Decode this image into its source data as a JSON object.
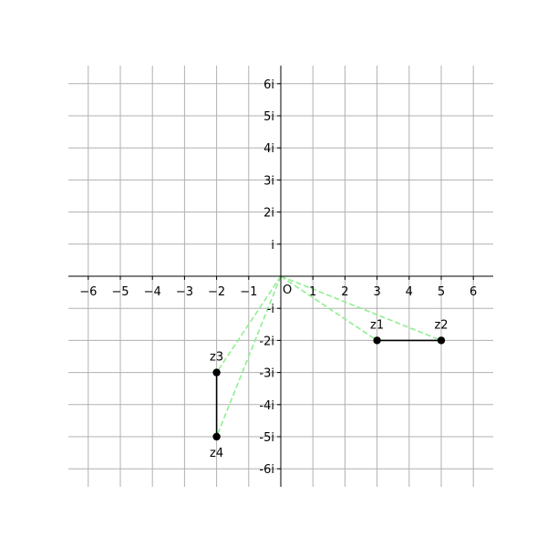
{
  "chart_data": {
    "type": "scatter",
    "title": "",
    "xlabel": "",
    "ylabel": "",
    "xlim": [
      -6.6,
      6.6
    ],
    "ylim": [
      -6.6,
      6.6
    ],
    "grid": true,
    "x_ticks": [
      {
        "value": -6,
        "label": "−6"
      },
      {
        "value": -5,
        "label": "−5"
      },
      {
        "value": -4,
        "label": "−4"
      },
      {
        "value": -3,
        "label": "−3"
      },
      {
        "value": -2,
        "label": "−2"
      },
      {
        "value": -1,
        "label": "−1"
      },
      {
        "value": 1,
        "label": "1"
      },
      {
        "value": 2,
        "label": "2"
      },
      {
        "value": 3,
        "label": "3"
      },
      {
        "value": 4,
        "label": "4"
      },
      {
        "value": 5,
        "label": "5"
      },
      {
        "value": 6,
        "label": "6"
      }
    ],
    "y_ticks": [
      {
        "value": 6,
        "label": "6i"
      },
      {
        "value": 5,
        "label": "5i"
      },
      {
        "value": 4,
        "label": "4i"
      },
      {
        "value": 3,
        "label": "3i"
      },
      {
        "value": 2,
        "label": "2i"
      },
      {
        "value": 1,
        "label": "i"
      },
      {
        "value": -1,
        "label": "-i"
      },
      {
        "value": -2,
        "label": "-2i"
      },
      {
        "value": -3,
        "label": "-3i"
      },
      {
        "value": -4,
        "label": "-4i"
      },
      {
        "value": -5,
        "label": "-5i"
      },
      {
        "value": -6,
        "label": "-6i"
      }
    ],
    "origin_label": "O",
    "points": [
      {
        "label": "z1",
        "x": 3,
        "y": -2,
        "label_pos": "above"
      },
      {
        "label": "z2",
        "x": 5,
        "y": -2,
        "label_pos": "above"
      },
      {
        "label": "z3",
        "x": -2,
        "y": -3,
        "label_pos": "above"
      },
      {
        "label": "z4",
        "x": -2,
        "y": -5,
        "label_pos": "below"
      }
    ],
    "segments": [
      {
        "from": "z1",
        "to": "z2"
      },
      {
        "from": "z3",
        "to": "z4"
      }
    ],
    "dashed_rays": [
      "z1",
      "z2",
      "z3",
      "z4"
    ],
    "colors": {
      "grid": "#b0b0b0",
      "axis": "#000000",
      "point": "#000000",
      "segment": "#000000",
      "ray": "#90ee90"
    }
  }
}
